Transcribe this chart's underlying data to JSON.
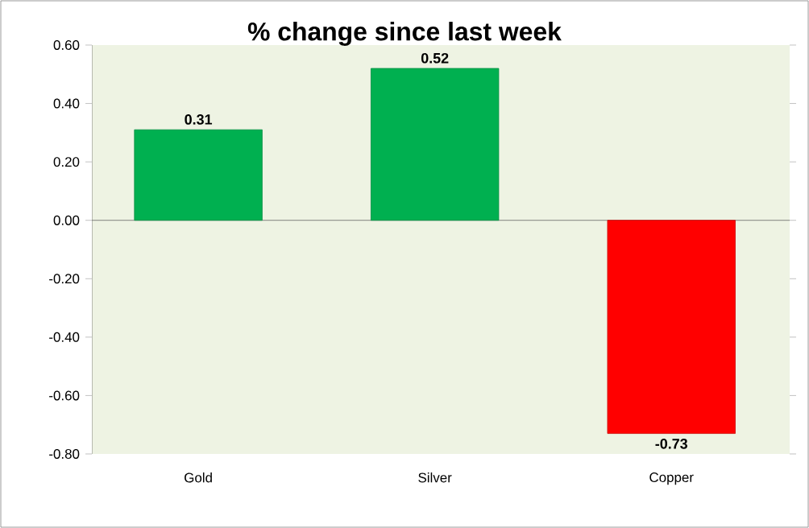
{
  "chart_data": {
    "type": "bar",
    "title": "% change since last week",
    "categories": [
      "Gold",
      "Silver",
      "Copper"
    ],
    "values": [
      0.31,
      0.52,
      -0.73
    ],
    "colors": [
      "#00b050",
      "#00b050",
      "#ff0000"
    ],
    "value_labels": [
      "0.31",
      "0.52",
      "-0.73"
    ],
    "ylim": [
      -0.8,
      0.6
    ],
    "yticks": [
      {
        "value": -0.8,
        "label": "-0.80"
      },
      {
        "value": -0.6,
        "label": "-0.60"
      },
      {
        "value": -0.4,
        "label": "-0.40"
      },
      {
        "value": -0.2,
        "label": "-0.20"
      },
      {
        "value": 0,
        "label": "0.00"
      },
      {
        "value": 0.2,
        "label": "0.20"
      },
      {
        "value": 0.4,
        "label": "0.40"
      },
      {
        "value": 0.6,
        "label": "0.60"
      }
    ]
  }
}
